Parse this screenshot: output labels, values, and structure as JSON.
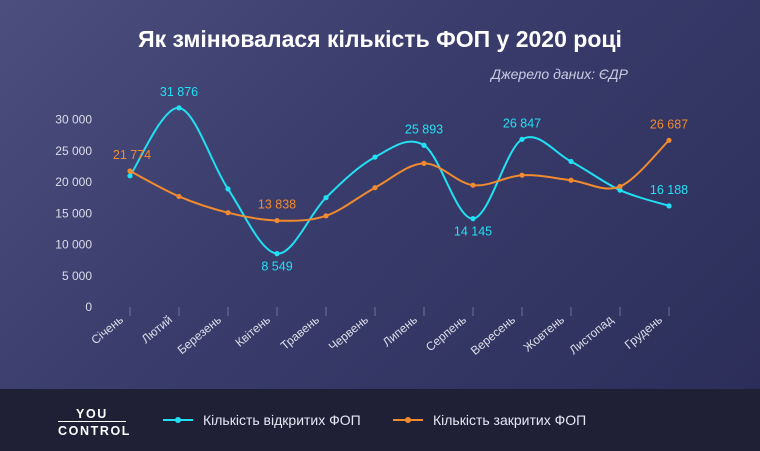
{
  "chart_data": {
    "type": "line",
    "title": "Як змінювалася кількість ФОП у 2020 році",
    "subtitle": "Джерело даних: ЄДР",
    "categories": [
      "Січень",
      "Лютий",
      "Березень",
      "Квітень",
      "Травень",
      "Червень",
      "Липень",
      "Серпень",
      "Вересень",
      "Жовтень",
      "Листопад",
      "Грудень"
    ],
    "yticks": [
      "0",
      "5 000",
      "10 000",
      "15 000",
      "20 000",
      "25 000",
      "30 000"
    ],
    "ylim": [
      0,
      32500
    ],
    "grid": false,
    "legend_position": "bottom",
    "series": [
      {
        "name": "Кількість відкритих ФОП",
        "color": "#22e0f4",
        "values": [
          21000,
          31876,
          18900,
          8549,
          17500,
          24000,
          25893,
          14145,
          26847,
          23300,
          18700,
          16188
        ],
        "labels": [
          "",
          "31 876",
          "",
          "8 549",
          "",
          "",
          "25 893",
          "14 145",
          "26 847",
          "",
          "",
          "16 188"
        ]
      },
      {
        "name": "Кількість закритих ФОП",
        "color": "#f28a2e",
        "values": [
          21774,
          17700,
          15100,
          13838,
          14600,
          19100,
          23000,
          19500,
          21100,
          20300,
          19300,
          26687
        ],
        "labels": [
          "21 774",
          "",
          "",
          "13 838",
          "",
          "",
          "",
          "",
          "",
          "",
          "",
          "26 687"
        ]
      }
    ]
  },
  "brand": {
    "line1": "YOU",
    "line2": "CONTROL"
  }
}
